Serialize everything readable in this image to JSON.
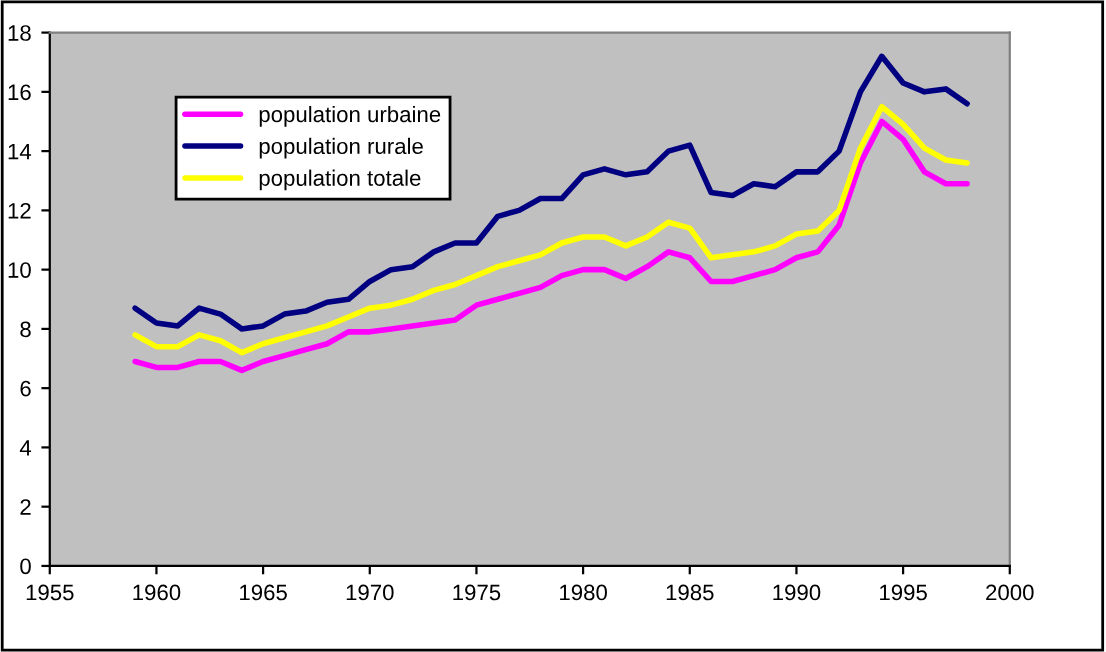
{
  "chart_data": {
    "type": "line",
    "x": [
      1959,
      1960,
      1961,
      1962,
      1963,
      1964,
      1965,
      1966,
      1967,
      1968,
      1969,
      1970,
      1971,
      1972,
      1973,
      1974,
      1975,
      1976,
      1977,
      1978,
      1979,
      1980,
      1981,
      1982,
      1983,
      1984,
      1985,
      1986,
      1987,
      1988,
      1989,
      1990,
      1991,
      1992,
      1993,
      1994,
      1995,
      1996,
      1997,
      1998
    ],
    "series": [
      {
        "name": "population urbaine",
        "color": "#ff00ff",
        "values": [
          6.9,
          6.7,
          6.7,
          6.9,
          6.9,
          6.6,
          6.9,
          7.1,
          7.3,
          7.5,
          7.9,
          7.9,
          8.0,
          8.1,
          8.2,
          8.3,
          8.8,
          9.0,
          9.2,
          9.4,
          9.8,
          10.0,
          10.0,
          9.7,
          10.1,
          10.6,
          10.4,
          9.6,
          9.6,
          9.8,
          10.0,
          10.4,
          10.6,
          11.5,
          13.6,
          15.0,
          14.4,
          13.3,
          12.9,
          12.9
        ]
      },
      {
        "name": "population rurale",
        "color": "#000080",
        "values": [
          8.7,
          8.2,
          8.1,
          8.7,
          8.5,
          8.0,
          8.1,
          8.5,
          8.6,
          8.9,
          9.0,
          9.6,
          10.0,
          10.1,
          10.6,
          10.9,
          10.9,
          11.8,
          12.0,
          12.4,
          12.4,
          13.2,
          13.4,
          13.2,
          13.3,
          14.0,
          14.2,
          12.6,
          12.5,
          12.9,
          12.8,
          13.3,
          13.3,
          14.0,
          16.0,
          17.2,
          16.3,
          16.0,
          16.1,
          15.6
        ]
      },
      {
        "name": "population totale",
        "color": "#ffff00",
        "values": [
          7.8,
          7.4,
          7.4,
          7.8,
          7.6,
          7.2,
          7.5,
          7.7,
          7.9,
          8.1,
          8.4,
          8.7,
          8.8,
          9.0,
          9.3,
          9.5,
          9.8,
          10.1,
          10.3,
          10.5,
          10.9,
          11.1,
          11.1,
          10.8,
          11.1,
          11.6,
          11.4,
          10.4,
          10.5,
          10.6,
          10.8,
          11.2,
          11.3,
          12.0,
          14.1,
          15.5,
          14.9,
          14.1,
          13.7,
          13.6
        ]
      }
    ],
    "xlim": [
      1955,
      2000
    ],
    "xticks": [
      1955,
      1960,
      1965,
      1970,
      1975,
      1980,
      1985,
      1990,
      1995,
      2000
    ],
    "ylim": [
      0,
      18
    ],
    "yticks": [
      0,
      2,
      4,
      6,
      8,
      10,
      12,
      14,
      16,
      18
    ],
    "grid": false,
    "legend": "top left",
    "marker": "none",
    "line_style": "solid"
  }
}
